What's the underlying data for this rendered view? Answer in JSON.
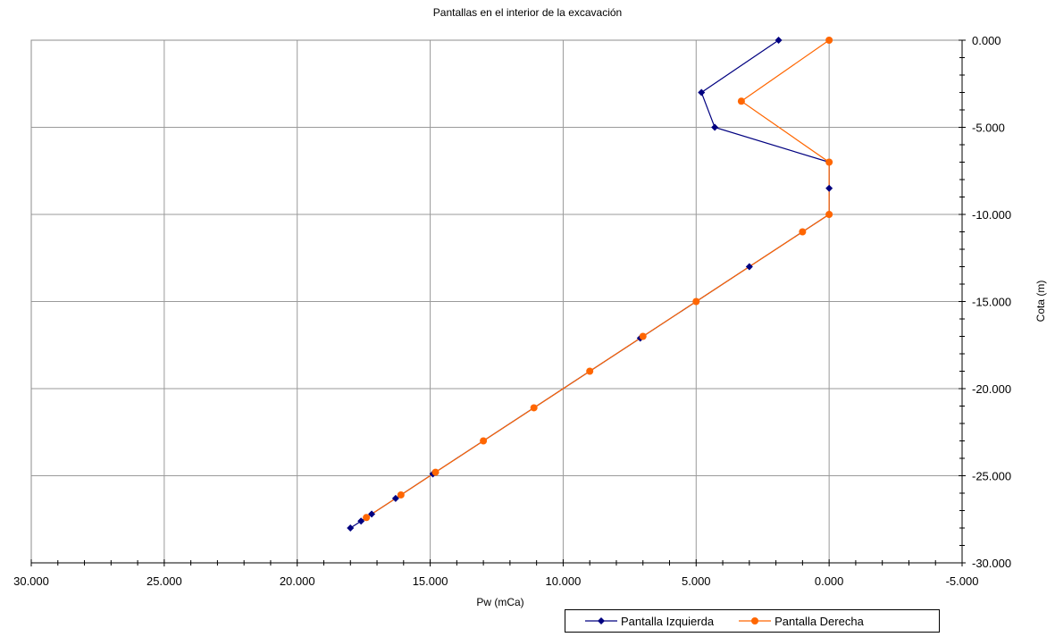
{
  "chart_data": {
    "type": "line",
    "title": "Pantallas en el interior de la excavación",
    "xlabel": "Pw (mCa)",
    "ylabel": "Cota (m)",
    "xlim": [
      30,
      -5
    ],
    "ylim": [
      -30,
      0
    ],
    "x_reversed": true,
    "y_axis_position": "right",
    "x_ticks": [
      {
        "value": 30,
        "label": "30.000"
      },
      {
        "value": 25,
        "label": "25.000"
      },
      {
        "value": 20,
        "label": "20.000"
      },
      {
        "value": 15,
        "label": "15.000"
      },
      {
        "value": 10,
        "label": "10.000"
      },
      {
        "value": 5,
        "label": "5.000"
      },
      {
        "value": 0,
        "label": "0.000"
      },
      {
        "value": -5,
        "label": "-5.000"
      }
    ],
    "y_ticks": [
      {
        "value": 0,
        "label": "0.000"
      },
      {
        "value": -5,
        "label": "-5.000"
      },
      {
        "value": -10,
        "label": "-10.000"
      },
      {
        "value": -15,
        "label": "-15.000"
      },
      {
        "value": -20,
        "label": "-20.000"
      },
      {
        "value": -25,
        "label": "-25.000"
      },
      {
        "value": -30,
        "label": "-30.000"
      }
    ],
    "grid": true,
    "legend_position": "bottom-right",
    "series": [
      {
        "name": "Pantalla Izquierda",
        "color": "#000080",
        "marker": "diamond",
        "points": [
          {
            "x": 1.9,
            "y": 0
          },
          {
            "x": 4.8,
            "y": -3.0
          },
          {
            "x": 4.3,
            "y": -5.0
          },
          {
            "x": 0.0,
            "y": -7.0
          },
          {
            "x": 0.0,
            "y": -8.5
          },
          {
            "x": 0.0,
            "y": -10.0
          },
          {
            "x": 3.0,
            "y": -13.0
          },
          {
            "x": 7.1,
            "y": -17.1
          },
          {
            "x": 14.9,
            "y": -24.9
          },
          {
            "x": 16.3,
            "y": -26.3
          },
          {
            "x": 17.2,
            "y": -27.2
          },
          {
            "x": 17.6,
            "y": -27.6
          },
          {
            "x": 18.0,
            "y": -28.0
          }
        ]
      },
      {
        "name": "Pantalla Derecha",
        "color": "#FF6600",
        "marker": "circle",
        "points": [
          {
            "x": 0.0,
            "y": 0
          },
          {
            "x": 3.3,
            "y": -3.5
          },
          {
            "x": 0.0,
            "y": -7.0
          },
          {
            "x": 0.0,
            "y": -10.0
          },
          {
            "x": 1.0,
            "y": -11.0
          },
          {
            "x": 5.0,
            "y": -15.0
          },
          {
            "x": 7.0,
            "y": -17.0
          },
          {
            "x": 9.0,
            "y": -19.0
          },
          {
            "x": 11.1,
            "y": -21.1
          },
          {
            "x": 13.0,
            "y": -23.0
          },
          {
            "x": 14.8,
            "y": -24.8
          },
          {
            "x": 16.1,
            "y": -26.1
          },
          {
            "x": 17.4,
            "y": -27.4
          }
        ]
      }
    ]
  }
}
